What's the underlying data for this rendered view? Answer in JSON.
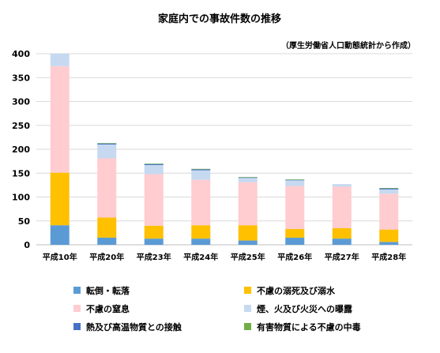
{
  "chart_data": {
    "type": "bar",
    "stacked": true,
    "title": "家庭内での事故件数の推移",
    "subtitle": "（厚生労働省人口動態統計から作成）",
    "xlabel": "",
    "ylabel": "",
    "ylim": [
      0,
      400
    ],
    "yticks": [
      0,
      50,
      100,
      150,
      200,
      250,
      300,
      350,
      400
    ],
    "grid": true,
    "legend_position": "bottom",
    "categories": [
      "平成10年",
      "平成20年",
      "平成23年",
      "平成24年",
      "平成25年",
      "平成26年",
      "平成27年",
      "平成28年"
    ],
    "series": [
      {
        "name": "転倒・転落",
        "color": "#5b9bd5",
        "values": [
          41,
          15,
          13,
          13,
          9,
          15,
          13,
          6
        ]
      },
      {
        "name": "不慮の溺死及び溺水",
        "color": "#ffc000",
        "values": [
          110,
          42,
          27,
          28,
          32,
          18,
          22,
          26
        ]
      },
      {
        "name": "不慮の窒息",
        "color": "#ffccd0",
        "values": [
          223,
          124,
          108,
          95,
          90,
          90,
          87,
          75
        ]
      },
      {
        "name": "煙、火及び火災への曝露",
        "color": "#c6d9f1",
        "values": [
          26,
          29,
          19,
          20,
          9,
          12,
          5,
          9
        ]
      },
      {
        "name": "熱及び高温物質との接触",
        "color": "#4472c4",
        "values": [
          0,
          2,
          2,
          2,
          1,
          1,
          0,
          2
        ]
      },
      {
        "name": "有害物質による不慮の中毒",
        "color": "#70ad47",
        "values": [
          0,
          1,
          1,
          1,
          1,
          1,
          0,
          1
        ]
      }
    ]
  }
}
